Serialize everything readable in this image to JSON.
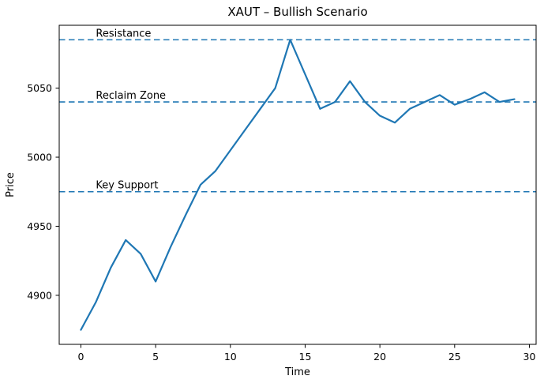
{
  "chart_data": {
    "type": "line",
    "title": "XAUT – Bullish Scenario",
    "xlabel": "Time",
    "ylabel": "Price",
    "x": [
      0,
      1,
      2,
      3,
      4,
      5,
      6,
      7,
      8,
      9,
      10,
      11,
      12,
      13,
      14,
      15,
      16,
      17,
      18,
      19,
      20,
      21,
      22,
      23,
      24,
      25,
      26,
      27,
      28,
      29
    ],
    "values": [
      4875,
      4895,
      4920,
      4940,
      4930,
      4910,
      4935,
      4958,
      4980,
      4990,
      5005,
      5020,
      5035,
      5050,
      5085,
      5060,
      5035,
      5040,
      5055,
      5040,
      5030,
      5025,
      5035,
      5040,
      5045,
      5038,
      5042,
      5047,
      5040,
      5042
    ],
    "xticks": [
      0,
      5,
      10,
      15,
      20,
      25,
      30
    ],
    "yticks": [
      4900,
      4950,
      5000,
      5050
    ],
    "xlim": [
      -1.45,
      30.45
    ],
    "ylim": [
      4864.5,
      5095.5
    ],
    "grid": false,
    "legend": "none",
    "line_color": "#1f77b4",
    "hline_color": "#1f77b4",
    "hline_style": "dashed",
    "hlines": [
      {
        "label": "Resistance",
        "value": 5085,
        "label_x": 1
      },
      {
        "label": "Reclaim Zone",
        "value": 5040,
        "label_x": 1
      },
      {
        "label": "Key Support",
        "value": 4975,
        "label_x": 1
      }
    ],
    "axis_color": "#000000"
  }
}
